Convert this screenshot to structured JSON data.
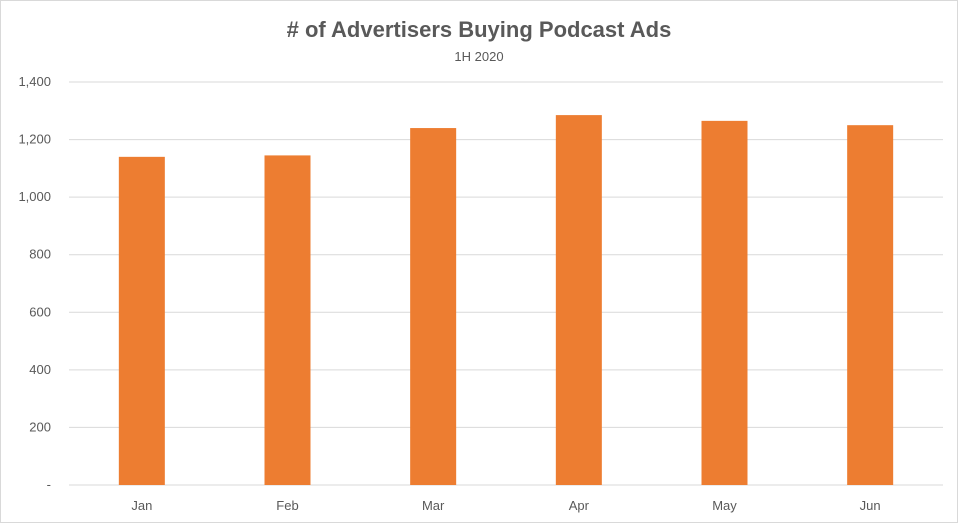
{
  "chart_data": {
    "type": "bar",
    "title": "# of Advertisers Buying Podcast Ads",
    "subtitle": "1H 2020",
    "xlabel": "",
    "ylabel": "",
    "categories": [
      "Jan",
      "Feb",
      "Mar",
      "Apr",
      "May",
      "Jun"
    ],
    "values": [
      1140,
      1145,
      1240,
      1285,
      1265,
      1250
    ],
    "ylim": [
      0,
      1400
    ],
    "yticks": [
      0,
      200,
      400,
      600,
      800,
      1000,
      1200,
      1400
    ],
    "ytick_labels": [
      "-",
      "200",
      "400",
      "600",
      "800",
      "1,000",
      "1,200",
      "1,400"
    ],
    "grid": true,
    "legend": "none",
    "bar_color": "#ED7D31",
    "grid_color": "#D9D9D9",
    "text_color": "#595959"
  }
}
